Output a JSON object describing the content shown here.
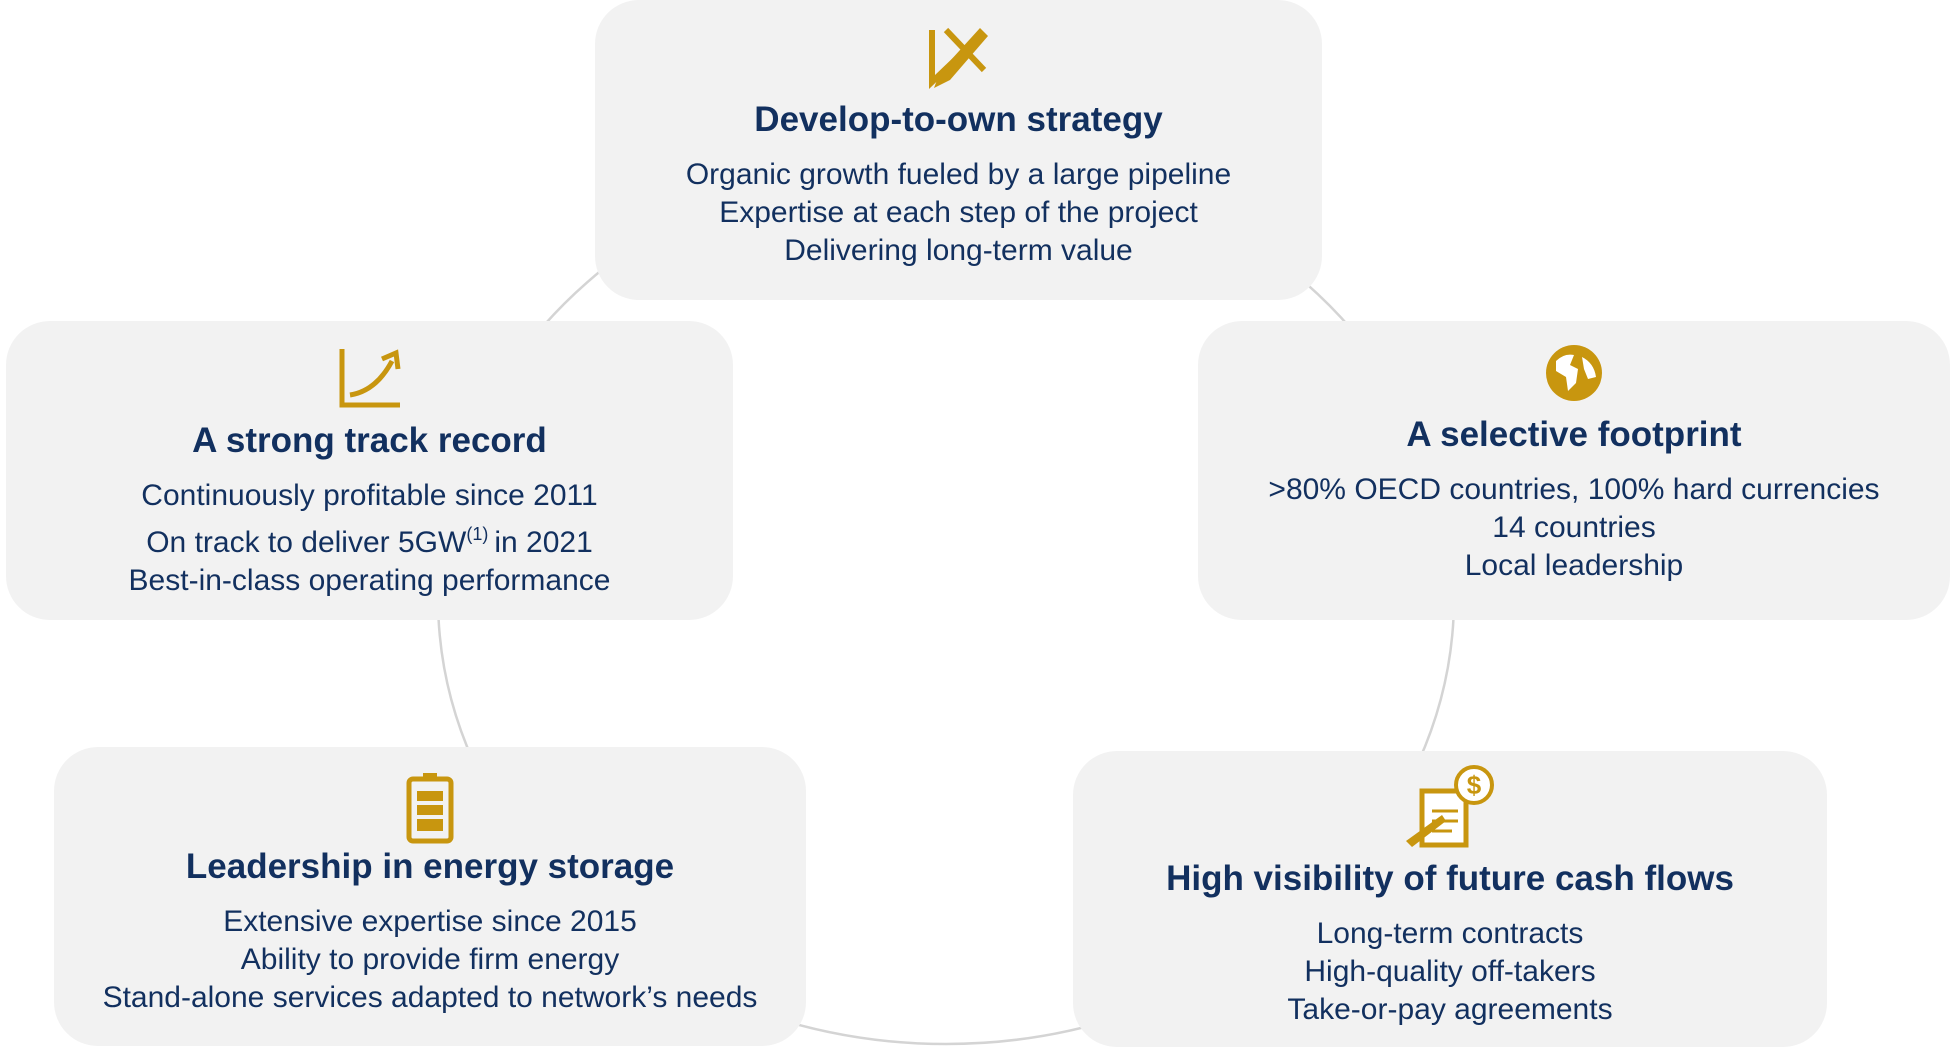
{
  "cards": [
    {
      "title": "Develop-to-own strategy",
      "lines": [
        "Organic growth fueled by a large pipeline",
        "Expertise at each step of the project",
        "Delivering long-term value"
      ]
    },
    {
      "title": "A strong track record",
      "lines": [
        "Continuously profitable since 2011",
        {
          "text": "On track to deliver 5GW",
          "sup": "(1)",
          "after": "in 2021"
        },
        "Best-in-class operating performance"
      ]
    },
    {
      "title": "A selective footprint",
      "lines": [
        ">80% OECD countries, 100% hard currencies",
        "14 countries",
        "Local leadership"
      ]
    },
    {
      "title": "Leadership in energy storage",
      "lines": [
        "Extensive expertise since 2015",
        "Ability to provide firm energy",
        "Stand-alone services adapted to network’s needs"
      ]
    },
    {
      "title": "High visibility of future cash flows",
      "lines": [
        "Long-term contracts",
        "High-quality off-takers",
        "Take-or-pay agreements"
      ]
    }
  ]
}
